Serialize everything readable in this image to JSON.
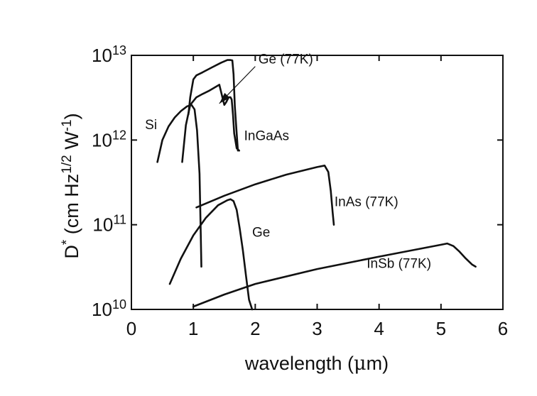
{
  "chart_data": {
    "type": "line",
    "xlabel_parts": [
      "wavelength (",
      "μ",
      "m)"
    ],
    "ylabel_parts": [
      "D",
      "*",
      " (cm Hz",
      "1/2",
      " W",
      "-1",
      ")"
    ],
    "xlim": [
      0,
      6
    ],
    "ylim": [
      10000000000.0,
      10000000000000.0
    ],
    "yscale": "log",
    "grid": false,
    "xticks": [
      0,
      1,
      2,
      3,
      4,
      5,
      6
    ],
    "yticks": [
      {
        "value": 10000000000.0,
        "base": "10",
        "exp": "10"
      },
      {
        "value": 100000000000.0,
        "base": "10",
        "exp": "11"
      },
      {
        "value": 1000000000000.0,
        "base": "10",
        "exp": "12"
      },
      {
        "value": 10000000000000.0,
        "base": "10",
        "exp": "13"
      }
    ],
    "series": [
      {
        "name": "Si",
        "label_at": [
          0.22,
          1350000000000.0
        ],
        "x": [
          0.42,
          0.5,
          0.6,
          0.7,
          0.8,
          0.9,
          0.97,
          1.02,
          1.06,
          1.1,
          1.12,
          1.13
        ],
        "y": [
          550000000000.0,
          1000000000000.0,
          1450000000000.0,
          1850000000000.0,
          2200000000000.0,
          2500000000000.0,
          2600000000000.0,
          2300000000000.0,
          1300000000000.0,
          400000000000.0,
          80000000000.0,
          32000000000.0
        ]
      },
      {
        "name": "InGaAs",
        "label_at": [
          1.82,
          1000000000000.0
        ],
        "x": [
          0.82,
          0.88,
          0.95,
          1.05,
          1.15,
          1.25,
          1.35,
          1.42,
          1.47,
          1.5,
          1.53,
          1.57,
          1.6,
          1.62,
          1.64,
          1.66,
          1.7,
          1.74
        ],
        "y": [
          550000000000.0,
          1500000000000.0,
          2600000000000.0,
          3200000000000.0,
          3500000000000.0,
          3800000000000.0,
          4200000000000.0,
          4500000000000.0,
          3200000000000.0,
          2600000000000.0,
          2800000000000.0,
          3200000000000.0,
          3200000000000.0,
          3000000000000.0,
          2000000000000.0,
          1200000000000.0,
          800000000000.0,
          750000000000.0
        ]
      },
      {
        "name": "Ge (77K)",
        "label_at": [
          2.05,
          8000000000000.0
        ],
        "x": [
          0.92,
          0.95,
          1.0,
          1.05,
          1.15,
          1.3,
          1.45,
          1.55,
          1.6,
          1.63,
          1.65,
          1.67,
          1.7,
          1.72
        ],
        "y": [
          2000000000000.0,
          3200000000000.0,
          5200000000000.0,
          5800000000000.0,
          6300000000000.0,
          7200000000000.0,
          8200000000000.0,
          8800000000000.0,
          8800000000000.0,
          8700000000000.0,
          6000000000000.0,
          2500000000000.0,
          1200000000000.0,
          750000000000.0
        ]
      },
      {
        "name": "InAs (77K)",
        "label_at": [
          3.28,
          165000000000.0
        ],
        "x": [
          1.05,
          1.5,
          2.0,
          2.5,
          3.0,
          3.12,
          3.18,
          3.22,
          3.25,
          3.27
        ],
        "y": [
          160000000000.0,
          220000000000.0,
          300000000000.0,
          390000000000.0,
          480000000000.0,
          500000000000.0,
          420000000000.0,
          250000000000.0,
          140000000000.0,
          100000000000.0
        ]
      },
      {
        "name": "Ge",
        "label_at": [
          1.95,
          72000000000.0
        ],
        "x": [
          0.62,
          0.8,
          1.0,
          1.2,
          1.4,
          1.55,
          1.6,
          1.65,
          1.7,
          1.75,
          1.8,
          1.85,
          1.9,
          1.95
        ],
        "y": [
          20000000000.0,
          40000000000.0,
          75000000000.0,
          120000000000.0,
          170000000000.0,
          195000000000.0,
          200000000000.0,
          190000000000.0,
          150000000000.0,
          90000000000.0,
          50000000000.0,
          25000000000.0,
          13000000000.0,
          10000000000.0
        ]
      },
      {
        "name": "InSb (77K)",
        "label_at": [
          3.8,
          31000000000.0
        ],
        "x": [
          1.0,
          1.5,
          2.0,
          3.0,
          4.0,
          5.0,
          5.1,
          5.2,
          5.3,
          5.4,
          5.5,
          5.56
        ],
        "y": [
          10800000000.0,
          15000000000.0,
          20000000000.0,
          30000000000.0,
          42000000000.0,
          58000000000.0,
          60000000000.0,
          56000000000.0,
          48000000000.0,
          40000000000.0,
          34000000000.0,
          32000000000.0
        ]
      }
    ],
    "annotations": [
      {
        "label": "Ge (77K)",
        "arrow_from": [
          2.0,
          7400000000000.0
        ],
        "arrow_to": [
          1.42,
          2700000000000.0
        ]
      }
    ]
  }
}
